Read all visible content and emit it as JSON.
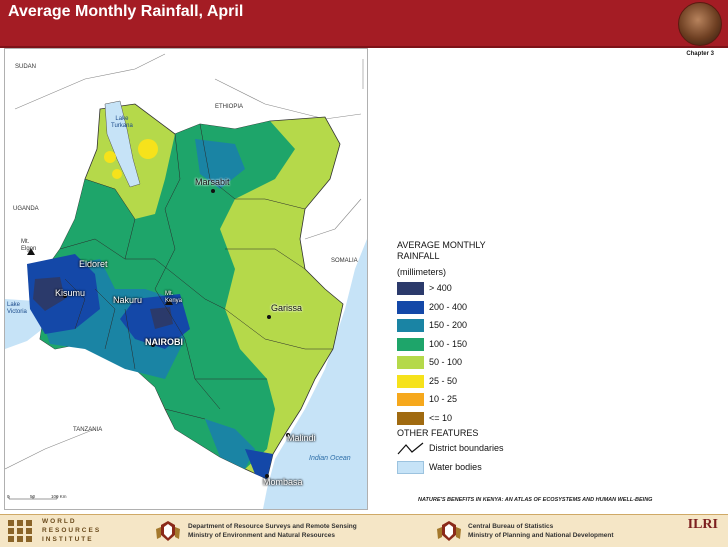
{
  "header": {
    "title": "Average Monthly Rainfall, April",
    "chapter": "Chapter 3"
  },
  "map": {
    "countries": [
      "SUDAN",
      "ETHIOPIA",
      "UGANDA",
      "SOMALIA",
      "TANZANIA"
    ],
    "lake_labels": {
      "turkana_line1": "Lake",
      "turkana_line2": "Turkana",
      "victoria_line1": "Lake",
      "victoria_line2": "Victoria"
    },
    "mountain_labels": {
      "elgon_line1": "Mt.",
      "elgon_line2": "Elgon",
      "kenya_line1": "Mt.",
      "kenya_line2": "Kenya"
    },
    "towns": {
      "marsabit": "Marsabit",
      "eldoret": "Eldoret",
      "kisumu": "Kisumu",
      "nakuru": "Nakuru",
      "nairobi": "NAIROBI",
      "garissa": "Garissa",
      "malindi": "Malindi",
      "mombasa": "Mombasa"
    },
    "ocean": "Indian Ocean",
    "scale": {
      "t0": "0",
      "t1": "50",
      "t2": "100 Km"
    }
  },
  "legend": {
    "title_line1": "AVERAGE MONTHLY",
    "title_line2": "RAINFALL",
    "unit": "(millimeters)",
    "classes": [
      {
        "label": "> 400",
        "color": "#2b3a6b"
      },
      {
        "label": "200 - 400",
        "color": "#1448a8"
      },
      {
        "label": "150 - 200",
        "color": "#1a84a4"
      },
      {
        "label": "100 - 150",
        "color": "#1ea56a"
      },
      {
        "label": "50 - 100",
        "color": "#b5d94a"
      },
      {
        "label": "25 - 50",
        "color": "#f6e21b"
      },
      {
        "label": "10 - 25",
        "color": "#f6a81c"
      },
      {
        "label": "<= 10",
        "color": "#a06a10"
      }
    ],
    "other_title": "OTHER FEATURES",
    "district_label": "District boundaries",
    "water_label": "Water bodies",
    "water_color": "#c6e3f7"
  },
  "caption": "NATURE'S BENEFITS IN KENYA: AN ATLAS OF ECOSYSTEMS AND HUMAN WELL-BEING",
  "footer": {
    "wri_line1": "WORLD",
    "wri_line2": "RESOURCES",
    "wri_line3": "INSTITUTE",
    "dept1_line1": "Department of Resource Surveys and Remote Sensing",
    "dept1_line2": "Ministry of Environment and Natural Resources",
    "dept2_line1": "Central Bureau of Statistics",
    "dept2_line2": "Ministry of Planning and National Development",
    "ilri": "ILRI"
  }
}
